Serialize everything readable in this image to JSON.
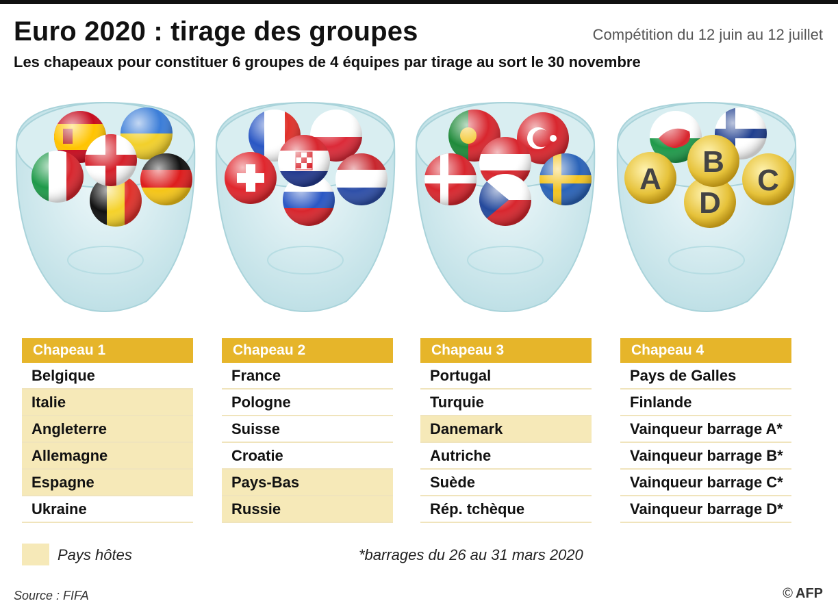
{
  "title": "Euro 2020 : tirage des groupes",
  "dates": "Compétition du 12 juin au 12 juillet",
  "subtitle": "Les chapeaux pour constituer 6 groupes de 4 équipes par tirage au sort le 30 novembre",
  "pots": [
    {
      "label": "Chapeau 1",
      "teams": [
        {
          "name": "Belgique",
          "host": false
        },
        {
          "name": "Italie",
          "host": true
        },
        {
          "name": "Angleterre",
          "host": true
        },
        {
          "name": "Allemagne",
          "host": true
        },
        {
          "name": "Espagne",
          "host": true
        },
        {
          "name": "Ukraine",
          "host": false
        }
      ]
    },
    {
      "label": "Chapeau 2",
      "teams": [
        {
          "name": "France",
          "host": false
        },
        {
          "name": "Pologne",
          "host": false
        },
        {
          "name": "Suisse",
          "host": false
        },
        {
          "name": "Croatie",
          "host": false
        },
        {
          "name": "Pays-Bas",
          "host": true
        },
        {
          "name": "Russie",
          "host": true
        }
      ]
    },
    {
      "label": "Chapeau 3",
      "teams": [
        {
          "name": "Portugal",
          "host": false
        },
        {
          "name": "Turquie",
          "host": false
        },
        {
          "name": "Danemark",
          "host": true
        },
        {
          "name": "Autriche",
          "host": false
        },
        {
          "name": "Suède",
          "host": false
        },
        {
          "name": "Rép. tchèque",
          "host": false
        }
      ]
    },
    {
      "label": "Chapeau 4",
      "teams": [
        {
          "name": "Pays de Galles",
          "host": false
        },
        {
          "name": "Finlande",
          "host": false
        },
        {
          "name": "Vainqueur barrage A*",
          "host": false
        },
        {
          "name": "Vainqueur barrage B*",
          "host": false
        },
        {
          "name": "Vainqueur barrage C*",
          "host": false
        },
        {
          "name": "Vainqueur barrage D*",
          "host": false
        }
      ]
    }
  ],
  "legend": {
    "host_label": "Pays hôtes"
  },
  "footnote": "*barrages du 26 au 31 mars 2020",
  "source": "Source : FIFA",
  "credit": {
    "copyright": "©",
    "agency": "AFP"
  },
  "ball_letters": [
    "A",
    "B",
    "C",
    "D"
  ],
  "colors": {
    "accent": "#e6b52a",
    "host": "#f6e9b8",
    "glass": "#cfe8ec"
  }
}
